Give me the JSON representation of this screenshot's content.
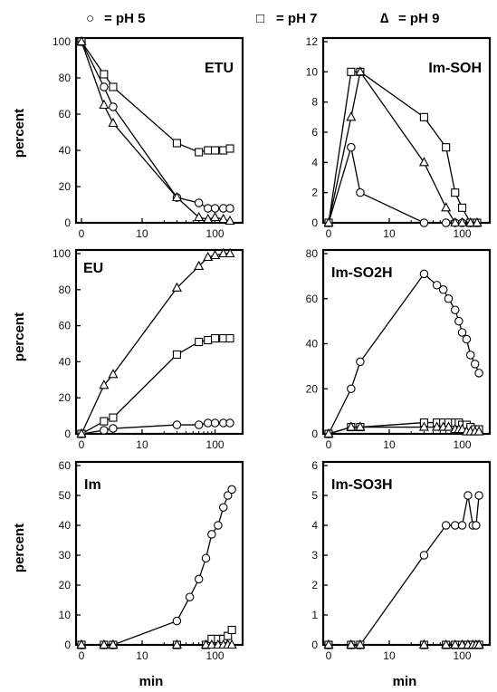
{
  "legend": [
    {
      "symbol": "○",
      "label": "= pH 5"
    },
    {
      "symbol": "□",
      "label": "= pH 7"
    },
    {
      "symbol": "∆",
      "label": "= pH 9"
    }
  ],
  "ylabel": "percent",
  "xlabel": "min",
  "xticks": [
    {
      "v": 0,
      "t": "0"
    },
    {
      "v": 10,
      "t": "10"
    },
    {
      "v": 100,
      "t": "100"
    }
  ],
  "chart_data": [
    {
      "type": "scatter",
      "title": "ETU",
      "ylim": [
        0,
        100
      ],
      "yticks": [
        0,
        20,
        40,
        60,
        80,
        100
      ],
      "series": [
        {
          "name": "pH 5",
          "marker": "circle",
          "points": [
            [
              0,
              100
            ],
            [
              3,
              75
            ],
            [
              4,
              64
            ],
            [
              30,
              14
            ],
            [
              60,
              11
            ],
            [
              80,
              8
            ],
            [
              100,
              8
            ],
            [
              130,
              8
            ],
            [
              160,
              8
            ]
          ]
        },
        {
          "name": "pH 7",
          "marker": "square",
          "points": [
            [
              0,
              100
            ],
            [
              3,
              82
            ],
            [
              4,
              75
            ],
            [
              30,
              44
            ],
            [
              60,
              39
            ],
            [
              80,
              40
            ],
            [
              100,
              40
            ],
            [
              130,
              40
            ],
            [
              160,
              41
            ]
          ]
        },
        {
          "name": "pH 9",
          "marker": "triangle",
          "points": [
            [
              0,
              100
            ],
            [
              3,
              65
            ],
            [
              4,
              55
            ],
            [
              30,
              14
            ],
            [
              60,
              3
            ],
            [
              80,
              2
            ],
            [
              100,
              3
            ],
            [
              130,
              2
            ],
            [
              160,
              1
            ]
          ]
        }
      ]
    },
    {
      "type": "scatter",
      "title": "Im-SOH",
      "ylim": [
        0,
        12
      ],
      "yticks": [
        0,
        2,
        4,
        6,
        8,
        10,
        12
      ],
      "series": [
        {
          "name": "pH 5",
          "marker": "circle",
          "points": [
            [
              0,
              0
            ],
            [
              3,
              5
            ],
            [
              4,
              2
            ],
            [
              30,
              0
            ],
            [
              60,
              0
            ],
            [
              80,
              0
            ],
            [
              100,
              0
            ],
            [
              130,
              0
            ],
            [
              160,
              0
            ]
          ]
        },
        {
          "name": "pH 7",
          "marker": "square",
          "points": [
            [
              0,
              0
            ],
            [
              3,
              10
            ],
            [
              4,
              10
            ],
            [
              30,
              7
            ],
            [
              60,
              5
            ],
            [
              80,
              2
            ],
            [
              100,
              1
            ],
            [
              130,
              0
            ],
            [
              160,
              0
            ]
          ]
        },
        {
          "name": "pH 9",
          "marker": "triangle",
          "points": [
            [
              0,
              0
            ],
            [
              3,
              7
            ],
            [
              4,
              10
            ],
            [
              30,
              4
            ],
            [
              60,
              1
            ],
            [
              80,
              0
            ],
            [
              100,
              0
            ],
            [
              130,
              0
            ],
            [
              160,
              0
            ]
          ]
        }
      ]
    },
    {
      "type": "scatter",
      "title": "EU",
      "ylim": [
        0,
        100
      ],
      "yticks": [
        0,
        20,
        40,
        60,
        80,
        100
      ],
      "series": [
        {
          "name": "pH 5",
          "marker": "circle",
          "points": [
            [
              0,
              0
            ],
            [
              3,
              2
            ],
            [
              4,
              3
            ],
            [
              30,
              5
            ],
            [
              60,
              5
            ],
            [
              80,
              6
            ],
            [
              100,
              6
            ],
            [
              130,
              6
            ],
            [
              160,
              6
            ]
          ]
        },
        {
          "name": "pH 7",
          "marker": "square",
          "points": [
            [
              0,
              0
            ],
            [
              3,
              7
            ],
            [
              4,
              9
            ],
            [
              30,
              44
            ],
            [
              60,
              51
            ],
            [
              80,
              52
            ],
            [
              100,
              53
            ],
            [
              130,
              53
            ],
            [
              160,
              53
            ]
          ]
        },
        {
          "name": "pH 9",
          "marker": "triangle",
          "points": [
            [
              0,
              0
            ],
            [
              3,
              27
            ],
            [
              4,
              33
            ],
            [
              30,
              81
            ],
            [
              60,
              93
            ],
            [
              80,
              98
            ],
            [
              100,
              99
            ],
            [
              130,
              100
            ],
            [
              160,
              100
            ]
          ]
        }
      ]
    },
    {
      "type": "scatter",
      "title": "Im-SO2H",
      "ylim": [
        0,
        80
      ],
      "yticks": [
        0,
        20,
        40,
        60,
        80
      ],
      "series": [
        {
          "name": "pH 5",
          "marker": "circle",
          "points": [
            [
              0,
              0
            ],
            [
              3,
              20
            ],
            [
              4,
              32
            ],
            [
              30,
              71
            ],
            [
              45,
              66
            ],
            [
              55,
              64
            ],
            [
              65,
              60
            ],
            [
              80,
              55
            ],
            [
              90,
              50
            ],
            [
              100,
              45
            ],
            [
              115,
              42
            ],
            [
              130,
              35
            ],
            [
              150,
              31
            ],
            [
              170,
              27
            ]
          ]
        },
        {
          "name": "pH 7",
          "marker": "square",
          "points": [
            [
              0,
              0
            ],
            [
              3,
              3
            ],
            [
              4,
              3
            ],
            [
              30,
              5
            ],
            [
              45,
              5
            ],
            [
              55,
              5
            ],
            [
              65,
              5
            ],
            [
              80,
              5
            ],
            [
              90,
              5
            ],
            [
              100,
              4
            ],
            [
              115,
              4
            ],
            [
              130,
              3
            ],
            [
              150,
              2
            ],
            [
              170,
              2
            ]
          ]
        },
        {
          "name": "pH 9",
          "marker": "triangle",
          "points": [
            [
              0,
              0
            ],
            [
              3,
              3
            ],
            [
              4,
              3
            ],
            [
              30,
              3
            ],
            [
              45,
              3
            ],
            [
              55,
              3
            ],
            [
              65,
              3
            ],
            [
              80,
              2
            ],
            [
              90,
              2
            ],
            [
              100,
              2
            ],
            [
              115,
              1
            ],
            [
              130,
              1
            ],
            [
              150,
              1
            ],
            [
              170,
              1
            ]
          ]
        }
      ]
    },
    {
      "type": "scatter",
      "title": "Im",
      "ylim": [
        0,
        60
      ],
      "yticks": [
        0,
        10,
        20,
        30,
        40,
        50,
        60
      ],
      "series": [
        {
          "name": "pH 5",
          "marker": "circle",
          "points": [
            [
              0,
              0
            ],
            [
              3,
              0
            ],
            [
              4,
              0
            ],
            [
              30,
              8
            ],
            [
              45,
              16
            ],
            [
              60,
              22
            ],
            [
              75,
              29
            ],
            [
              90,
              37
            ],
            [
              110,
              40
            ],
            [
              130,
              46
            ],
            [
              150,
              50
            ],
            [
              170,
              52
            ]
          ]
        },
        {
          "name": "pH 7",
          "marker": "square",
          "points": [
            [
              0,
              0
            ],
            [
              3,
              0
            ],
            [
              4,
              0
            ],
            [
              30,
              0
            ],
            [
              75,
              0
            ],
            [
              90,
              2
            ],
            [
              110,
              2
            ],
            [
              130,
              2
            ],
            [
              150,
              3
            ],
            [
              170,
              5
            ]
          ]
        },
        {
          "name": "pH 9",
          "marker": "triangle",
          "points": [
            [
              0,
              0
            ],
            [
              3,
              0
            ],
            [
              4,
              0
            ],
            [
              30,
              0
            ],
            [
              75,
              0
            ],
            [
              90,
              0
            ],
            [
              110,
              0
            ],
            [
              130,
              0
            ],
            [
              150,
              0
            ],
            [
              170,
              0
            ]
          ]
        }
      ]
    },
    {
      "type": "scatter",
      "title": "Im-SO3H",
      "ylim": [
        0,
        6
      ],
      "yticks": [
        0,
        1,
        2,
        3,
        4,
        5,
        6
      ],
      "series": [
        {
          "name": "pH 5",
          "marker": "circle",
          "points": [
            [
              0,
              0
            ],
            [
              3,
              0
            ],
            [
              4,
              0
            ],
            [
              30,
              3
            ],
            [
              60,
              4
            ],
            [
              80,
              4
            ],
            [
              100,
              4
            ],
            [
              120,
              5
            ],
            [
              140,
              4
            ],
            [
              155,
              4
            ],
            [
              170,
              5
            ]
          ]
        },
        {
          "name": "pH 7",
          "marker": "square",
          "points": [
            [
              0,
              0
            ],
            [
              3,
              0
            ],
            [
              4,
              0
            ],
            [
              30,
              0
            ],
            [
              60,
              0
            ],
            [
              80,
              0
            ],
            [
              100,
              0
            ],
            [
              120,
              0
            ],
            [
              140,
              0
            ],
            [
              155,
              0
            ],
            [
              170,
              0
            ]
          ]
        },
        {
          "name": "pH 9",
          "marker": "triangle",
          "points": [
            [
              0,
              0
            ],
            [
              3,
              0
            ],
            [
              4,
              0
            ],
            [
              30,
              0
            ],
            [
              60,
              0
            ],
            [
              80,
              0
            ],
            [
              100,
              0
            ],
            [
              120,
              0
            ],
            [
              140,
              0
            ],
            [
              155,
              0
            ],
            [
              170,
              0
            ]
          ]
        }
      ]
    }
  ]
}
